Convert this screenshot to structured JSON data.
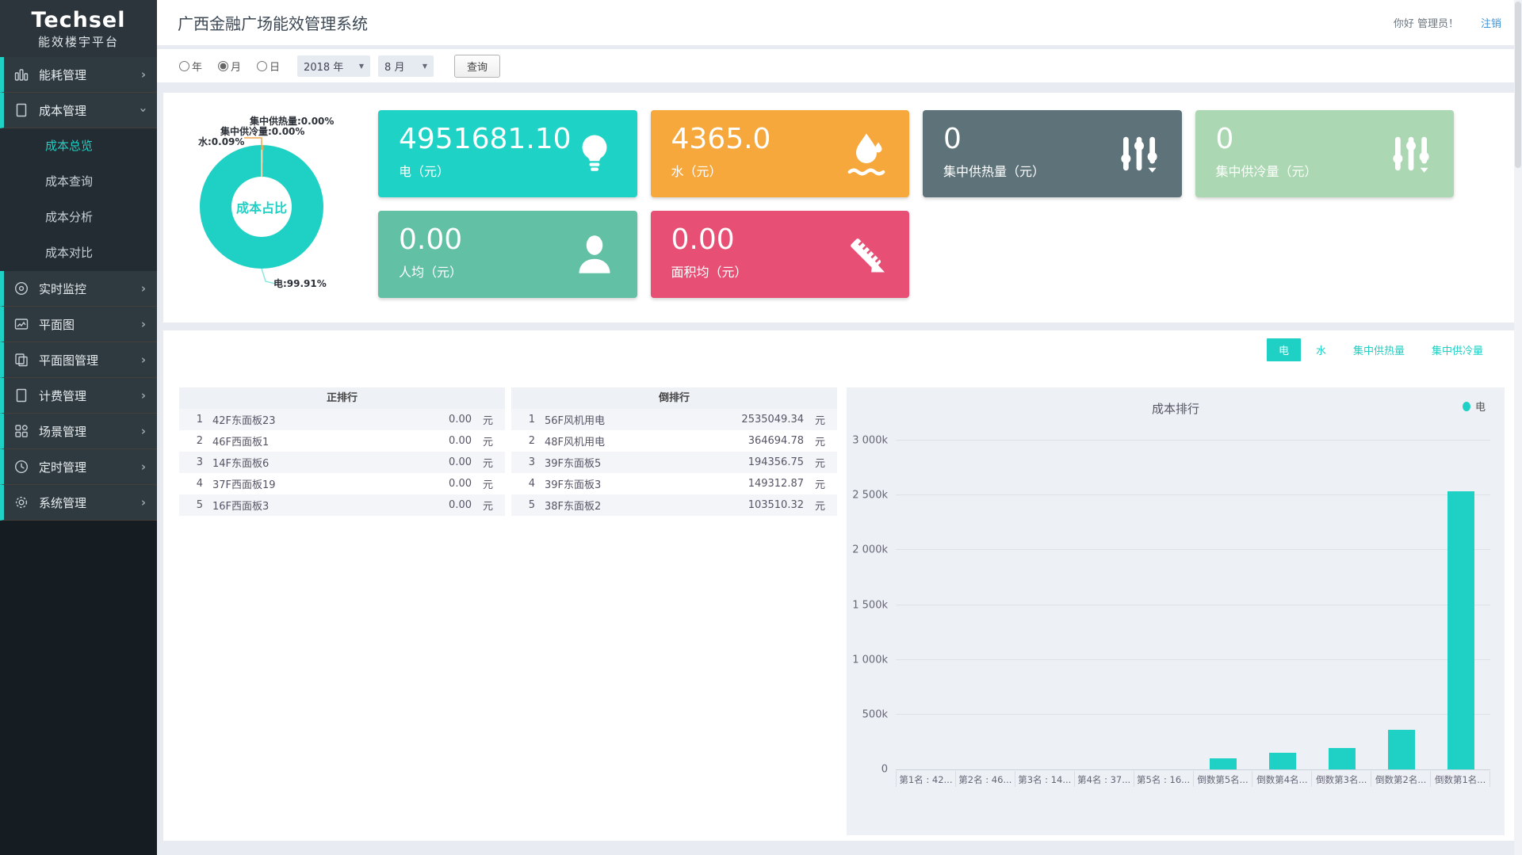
{
  "brand": {
    "name": "Techsel",
    "tagline": "能效楼宇平台"
  },
  "header": {
    "title": "广西金融广场能效管理系统",
    "greeting": "你好 管理员！",
    "logout": "注销"
  },
  "sidebar": {
    "items": [
      {
        "key": "energy",
        "label": "能耗管理",
        "icon": "bar-chart-icon",
        "has_children": true
      },
      {
        "key": "cost",
        "label": "成本管理",
        "icon": "document-icon",
        "has_children": true,
        "expanded": true,
        "children": [
          {
            "key": "cost-overview",
            "label": "成本总览",
            "active": true
          },
          {
            "key": "cost-query",
            "label": "成本查询",
            "active": false
          },
          {
            "key": "cost-analysis",
            "label": "成本分析",
            "active": false
          },
          {
            "key": "cost-compare",
            "label": "成本对比",
            "active": false
          }
        ]
      },
      {
        "key": "realtime-monitor",
        "label": "实时监控",
        "icon": "disc-icon",
        "has_children": true
      },
      {
        "key": "floorplan",
        "label": "平面图",
        "icon": "image-icon",
        "has_children": true
      },
      {
        "key": "floorplan-mgmt",
        "label": "平面图管理",
        "icon": "copy-icon",
        "has_children": true
      },
      {
        "key": "billing-mgmt",
        "label": "计费管理",
        "icon": "billing-icon",
        "has_children": true
      },
      {
        "key": "scene-mgmt",
        "label": "场景管理",
        "icon": "grid-icon",
        "has_children": true
      },
      {
        "key": "timer-mgmt",
        "label": "定时管理",
        "icon": "clock-icon",
        "has_children": true
      },
      {
        "key": "system-mgmt",
        "label": "系统管理",
        "icon": "gear-icon",
        "has_children": true
      }
    ]
  },
  "filters": {
    "period_options": [
      {
        "label": "年",
        "checked": false
      },
      {
        "label": "月",
        "checked": true
      },
      {
        "label": "日",
        "checked": false
      }
    ],
    "year": "2018 年",
    "month": "8 月",
    "query": "查询"
  },
  "donut": {
    "center_label": "成本占比",
    "labels": {
      "heat": "集中供热量:0.00%",
      "cool": "集中供冷量:0.00%",
      "water": "水:0.09%",
      "elec": "电:99.91%"
    },
    "slices": [
      {
        "name": "电",
        "pct": 99.91,
        "color": "#1fd0c4"
      },
      {
        "name": "水",
        "pct": 0.09,
        "color": "#f0a64a"
      },
      {
        "name": "集中供热量",
        "pct": 0.0,
        "color": "#5e7379"
      },
      {
        "name": "集中供冷量",
        "pct": 0.0,
        "color": "#abd8b2"
      }
    ]
  },
  "cards": [
    {
      "key": "electricity",
      "value": "4951681.10",
      "label": "电（元）",
      "color": "#1ed3c5",
      "icon": "bulb-icon"
    },
    {
      "key": "water",
      "value": "4365.0",
      "label": "水（元）",
      "color": "#f6a83c",
      "icon": "water-drop-icon"
    },
    {
      "key": "heating",
      "value": "0",
      "label": "集中供热量（元）",
      "color": "#5e7379",
      "icon": "sliders-icon"
    },
    {
      "key": "cooling",
      "value": "0",
      "label": "集中供冷量（元）",
      "color": "#abd8b2",
      "icon": "sliders-icon"
    },
    {
      "key": "per-capita",
      "value": "0.00",
      "label": "人均（元）",
      "color": "#62c0a4",
      "icon": "person-icon"
    },
    {
      "key": "per-area",
      "value": "0.00",
      "label": "面积均（元）",
      "color": "#e74f75",
      "icon": "ruler-icon"
    }
  ],
  "tabs": [
    {
      "label": "电",
      "active": true
    },
    {
      "label": "水",
      "active": false
    },
    {
      "label": "集中供热量",
      "active": false
    },
    {
      "label": "集中供冷量",
      "active": false
    }
  ],
  "rank_tables": {
    "unit": "元",
    "positive": {
      "title": "正排行",
      "rows": [
        {
          "rank": "1",
          "name": "42F东面板23",
          "value": "0.00"
        },
        {
          "rank": "2",
          "name": "46F西面板1",
          "value": "0.00"
        },
        {
          "rank": "3",
          "name": "14F东面板6",
          "value": "0.00"
        },
        {
          "rank": "4",
          "name": "37F西面板19",
          "value": "0.00"
        },
        {
          "rank": "5",
          "name": "16F西面板3",
          "value": "0.00"
        }
      ]
    },
    "negative": {
      "title": "倒排行",
      "rows": [
        {
          "rank": "1",
          "name": "56F风机用电",
          "value": "2535049.34"
        },
        {
          "rank": "2",
          "name": "48F风机用电",
          "value": "364694.78"
        },
        {
          "rank": "3",
          "name": "39F东面板5",
          "value": "194356.75"
        },
        {
          "rank": "4",
          "name": "39F东面板3",
          "value": "149312.87"
        },
        {
          "rank": "5",
          "name": "38F东面板2",
          "value": "103510.32"
        }
      ]
    }
  },
  "chart_data": {
    "type": "bar",
    "title": "成本排行",
    "legend": [
      {
        "name": "电",
        "color": "#1fd0c4"
      }
    ],
    "legend_position": "top-right",
    "categories": [
      "第1名 : 42...",
      "第2名 : 46...",
      "第3名 : 14...",
      "第4名 : 37...",
      "第5名 : 16...",
      "倒数第5名...",
      "倒数第4名...",
      "倒数第3名...",
      "倒数第2名...",
      "倒数第1名..."
    ],
    "values": [
      0,
      0,
      0,
      0,
      0,
      103510.32,
      149312.87,
      194356.75,
      364694.78,
      2535049.34
    ],
    "ylim": [
      0,
      3000000
    ],
    "ytick_step": 500000,
    "ytick_labels": [
      "0",
      "500k",
      "1 000k",
      "1 500k",
      "2 000k",
      "2 500k",
      "3 000k"
    ],
    "bar_color": "#1fd0c4",
    "grid": true
  }
}
